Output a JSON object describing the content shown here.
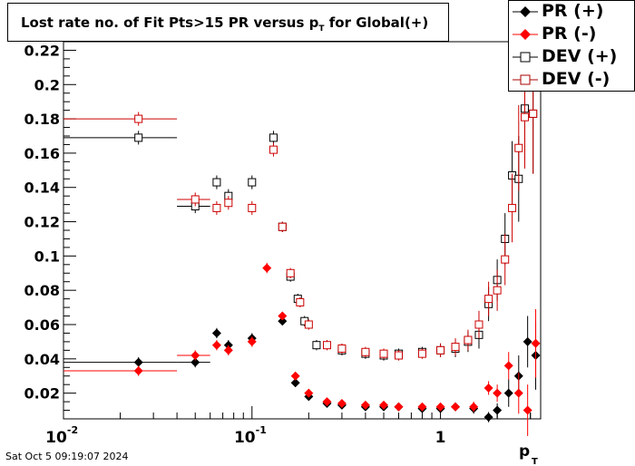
{
  "title": {
    "main": "Lost rate no. of Fit Pts>15 PR versus p",
    "sub": "T",
    "suffix": " for Global(+)"
  },
  "timestamp": "Sat Oct  5 09:19:07 2024",
  "legend": [
    {
      "label": "PR (+)",
      "color": "#000000",
      "marker": "filled-diamond"
    },
    {
      "label": "PR (-)",
      "color": "#ff0000",
      "marker": "filled-diamond"
    },
    {
      "label": "DEV (+)",
      "color": "#000000",
      "marker": "open-square"
    },
    {
      "label": "DEV (-)",
      "color": "#aa0000",
      "marker": "open-square"
    }
  ],
  "chart_data": {
    "type": "scatter",
    "xlabel": "p",
    "xlabel_sub": "T",
    "ylabel": "",
    "xscale": "log",
    "xlim": [
      0.01,
      3.4
    ],
    "ylim": [
      0.005,
      0.225
    ],
    "x_tick_labels": [
      "10",
      "-2",
      "10",
      "-1",
      "1"
    ],
    "x_ticks": [
      0.01,
      0.1,
      1
    ],
    "y_ticks": [
      0.02,
      0.04,
      0.06,
      0.08,
      0.1,
      0.12,
      0.14,
      0.16,
      0.18,
      0.2,
      0.22
    ],
    "y_tick_labels": [
      "0.02",
      "0.04",
      "0.06",
      "0.08",
      "0.1",
      "0.12",
      "0.14",
      "0.16",
      "0.18",
      "0.2",
      "0.22"
    ],
    "legend_position": "top-right",
    "series": [
      {
        "name": "PR (+)",
        "color": "#000000",
        "marker": "filled-diamond",
        "x": [
          0.025,
          0.05,
          0.065,
          0.075,
          0.1,
          0.145,
          0.17,
          0.2,
          0.25,
          0.3,
          0.4,
          0.5,
          0.6,
          0.8,
          1.0,
          1.2,
          1.5,
          1.8,
          2.0,
          2.3,
          2.6,
          2.9,
          3.2
        ],
        "y": [
          0.038,
          0.038,
          0.055,
          0.048,
          0.052,
          0.062,
          0.026,
          0.018,
          0.014,
          0.013,
          0.012,
          0.012,
          0.012,
          0.011,
          0.011,
          0.012,
          0.011,
          0.006,
          0.01,
          0.02,
          0.03,
          0.05,
          0.042
        ],
        "xerr_lo": [
          0.015,
          0.01,
          0,
          0,
          0,
          0,
          0,
          0,
          0,
          0,
          0,
          0,
          0,
          0,
          0,
          0,
          0,
          0,
          0,
          0,
          0,
          0,
          0
        ],
        "xerr_hi": [
          0.015,
          0.01,
          0,
          0,
          0,
          0,
          0,
          0,
          0,
          0,
          0,
          0,
          0,
          0,
          0,
          0,
          0,
          0,
          0,
          0,
          0,
          0,
          0
        ],
        "yerr": [
          0.003,
          0.003,
          0.003,
          0.003,
          0.003,
          0.002,
          0.002,
          0.002,
          0.002,
          0.002,
          0.002,
          0.002,
          0.002,
          0.002,
          0.002,
          0.002,
          0.003,
          0.003,
          0.004,
          0.008,
          0.012,
          0.015,
          0.02
        ]
      },
      {
        "name": "PR (-)",
        "color": "#ff0000",
        "marker": "filled-diamond",
        "x": [
          0.025,
          0.05,
          0.065,
          0.075,
          0.1,
          0.12,
          0.145,
          0.17,
          0.2,
          0.25,
          0.3,
          0.4,
          0.5,
          0.6,
          0.8,
          1.0,
          1.2,
          1.5,
          1.8,
          2.0,
          2.3,
          2.6,
          2.9,
          3.2
        ],
        "y": [
          0.033,
          0.042,
          0.048,
          0.045,
          0.05,
          0.093,
          0.065,
          0.03,
          0.02,
          0.015,
          0.014,
          0.013,
          0.013,
          0.012,
          0.012,
          0.012,
          0.012,
          0.012,
          0.023,
          0.02,
          0.036,
          0.02,
          0.01,
          0.049
        ],
        "xerr_lo": [
          0.015,
          0.01,
          0,
          0,
          0,
          0,
          0,
          0,
          0,
          0,
          0,
          0,
          0,
          0,
          0,
          0,
          0,
          0,
          0,
          0,
          0,
          0,
          0,
          0
        ],
        "xerr_hi": [
          0.015,
          0.01,
          0,
          0,
          0,
          0,
          0,
          0,
          0,
          0,
          0,
          0,
          0,
          0,
          0,
          0,
          0,
          0,
          0,
          0,
          0,
          0,
          0,
          0
        ],
        "yerr": [
          0.003,
          0.003,
          0.003,
          0.003,
          0.003,
          0.003,
          0.002,
          0.002,
          0.002,
          0.002,
          0.002,
          0.002,
          0.002,
          0.002,
          0.002,
          0.002,
          0.002,
          0.003,
          0.004,
          0.005,
          0.008,
          0.012,
          0.015,
          0.02
        ]
      },
      {
        "name": "DEV (+)",
        "color": "#000000",
        "marker": "open-square",
        "x": [
          0.025,
          0.05,
          0.065,
          0.075,
          0.1,
          0.13,
          0.145,
          0.16,
          0.175,
          0.19,
          0.22,
          0.3,
          0.4,
          0.5,
          0.6,
          0.8,
          1.0,
          1.2,
          1.4,
          1.6,
          1.8,
          2.0,
          2.2,
          2.4,
          2.6,
          2.8,
          3.1
        ],
        "y": [
          0.169,
          0.129,
          0.143,
          0.135,
          0.143,
          0.169,
          0.117,
          0.088,
          0.075,
          0.062,
          0.048,
          0.045,
          0.043,
          0.042,
          0.043,
          0.044,
          0.045,
          0.046,
          0.05,
          0.054,
          0.072,
          0.086,
          0.11,
          0.147,
          0.145,
          0.186,
          0.183
        ],
        "xerr_lo": [
          0.015,
          0.01,
          0,
          0,
          0,
          0,
          0,
          0,
          0,
          0,
          0,
          0,
          0,
          0,
          0,
          0,
          0,
          0,
          0,
          0,
          0,
          0,
          0,
          0,
          0,
          0,
          0
        ],
        "xerr_hi": [
          0.015,
          0.01,
          0,
          0,
          0,
          0,
          0,
          0,
          0,
          0,
          0,
          0,
          0,
          0,
          0,
          0,
          0,
          0,
          0,
          0,
          0,
          0,
          0,
          0,
          0,
          0,
          0
        ],
        "yerr": [
          0.004,
          0.004,
          0.004,
          0.004,
          0.004,
          0.004,
          0.003,
          0.003,
          0.003,
          0.003,
          0.003,
          0.003,
          0.003,
          0.003,
          0.003,
          0.003,
          0.004,
          0.005,
          0.006,
          0.008,
          0.01,
          0.012,
          0.015,
          0.02,
          0.025,
          0.03,
          0.035
        ]
      },
      {
        "name": "DEV (-)",
        "color": "#cc0000",
        "marker": "open-square",
        "x": [
          0.025,
          0.05,
          0.065,
          0.075,
          0.1,
          0.13,
          0.145,
          0.16,
          0.18,
          0.2,
          0.25,
          0.3,
          0.4,
          0.5,
          0.6,
          0.8,
          1.0,
          1.2,
          1.4,
          1.6,
          1.8,
          2.0,
          2.2,
          2.4,
          2.6,
          2.8,
          3.1
        ],
        "y": [
          0.18,
          0.133,
          0.128,
          0.131,
          0.128,
          0.162,
          0.117,
          0.09,
          0.073,
          0.06,
          0.048,
          0.046,
          0.044,
          0.043,
          0.042,
          0.043,
          0.045,
          0.047,
          0.051,
          0.06,
          0.075,
          0.08,
          0.098,
          0.128,
          0.163,
          0.181,
          0.183
        ],
        "xerr_lo": [
          0.015,
          0.01,
          0,
          0,
          0,
          0,
          0,
          0,
          0,
          0,
          0,
          0,
          0,
          0,
          0,
          0,
          0,
          0,
          0,
          0,
          0,
          0,
          0,
          0,
          0,
          0,
          0
        ],
        "xerr_hi": [
          0.015,
          0.01,
          0,
          0,
          0,
          0,
          0,
          0,
          0,
          0,
          0,
          0,
          0,
          0,
          0,
          0,
          0,
          0,
          0,
          0,
          0,
          0,
          0,
          0,
          0,
          0,
          0
        ],
        "yerr": [
          0.004,
          0.004,
          0.004,
          0.004,
          0.004,
          0.004,
          0.003,
          0.003,
          0.003,
          0.003,
          0.003,
          0.003,
          0.003,
          0.003,
          0.003,
          0.003,
          0.004,
          0.005,
          0.006,
          0.008,
          0.01,
          0.012,
          0.015,
          0.02,
          0.025,
          0.03,
          0.035
        ]
      }
    ]
  }
}
